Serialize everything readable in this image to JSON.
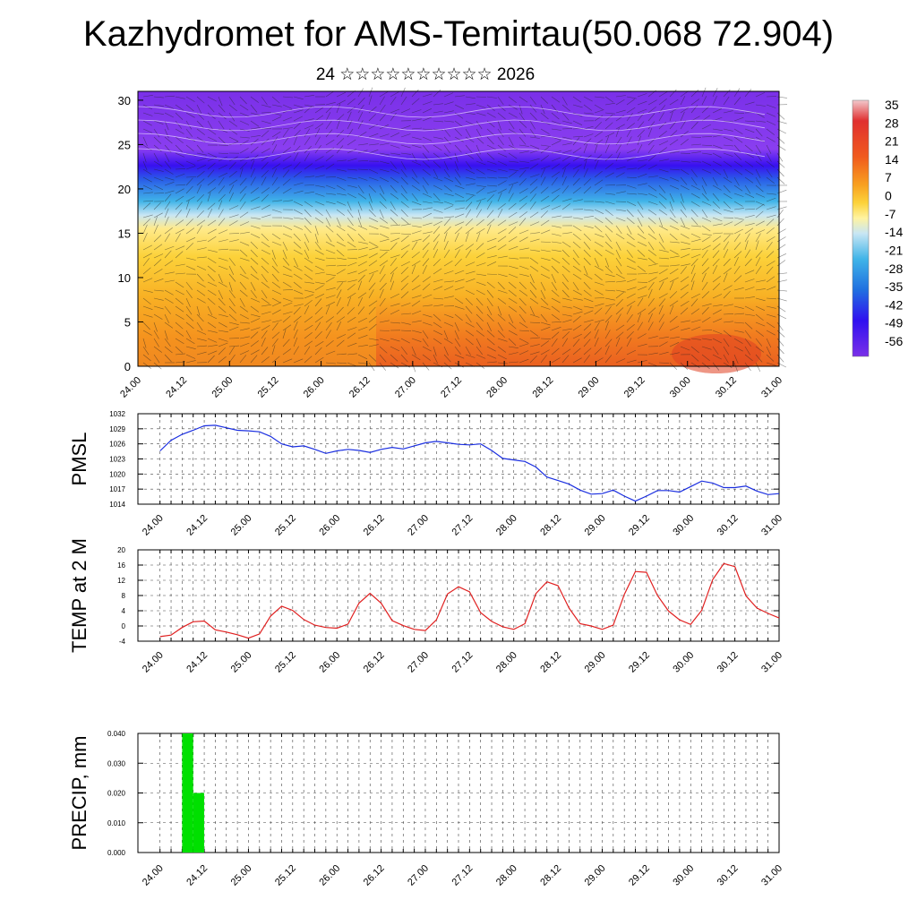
{
  "title": "Kazhydromet for AMS-Temirtau(50.068 72.904)",
  "subtitle": "24 ☆☆☆☆☆☆☆☆☆☆ 2026",
  "time_labels": [
    "24.00",
    "24.12",
    "25.00",
    "25.12",
    "26.00",
    "26.12",
    "27.00",
    "27.12",
    "28.00",
    "28.12",
    "29.00",
    "29.12",
    "30.00",
    "30.12",
    "31.00"
  ],
  "chart_data": [
    {
      "type": "heatmap",
      "name": "cross-section",
      "x": [
        "24.00",
        "24.12",
        "25.00",
        "25.12",
        "26.00",
        "26.12",
        "27.00",
        "27.12",
        "28.00",
        "28.12",
        "29.00",
        "29.12",
        "30.00",
        "30.12",
        "31.00"
      ],
      "yticks": [
        0,
        5,
        10,
        15,
        20,
        25,
        30
      ],
      "ylim": [
        0,
        31
      ],
      "colorbar_labels": [
        "35",
        "28",
        "21",
        "14",
        "7",
        "0",
        "-7",
        "-14",
        "-21",
        "-28",
        "-35",
        "-42",
        "-49",
        "-56"
      ],
      "colorbar_colors": [
        "#f2c8cc",
        "#e03030",
        "#f05a1e",
        "#f8a020",
        "#fcd23a",
        "#fff3a0",
        "#c8e6f4",
        "#40b4e8",
        "#2070e0",
        "#3010f0",
        "#7a30e8"
      ],
      "grid_values": [
        [
          -56,
          -56,
          -54,
          -56,
          -55,
          -54,
          -55,
          -56,
          -54,
          -55,
          -56,
          -55,
          -54,
          -56,
          -55
        ],
        [
          -50,
          -49,
          -48,
          -52,
          -50,
          -49,
          -51,
          -50,
          -48,
          -50,
          -51,
          -49,
          -50,
          -52,
          -50
        ],
        [
          -25,
          -22,
          -24,
          -28,
          -30,
          -26,
          -24,
          -20,
          -22,
          -26,
          -30,
          -28,
          -24,
          -26,
          -30
        ],
        [
          -3,
          -5,
          -6,
          -8,
          -4,
          -2,
          -1,
          -2,
          -4,
          -6,
          -3,
          -1,
          0,
          -2,
          -4
        ],
        [
          3,
          2,
          0,
          4,
          5,
          6,
          7,
          6,
          5,
          7,
          8,
          9,
          10,
          9,
          8
        ],
        [
          5,
          4,
          3,
          6,
          8,
          10,
          11,
          10,
          9,
          11,
          12,
          14,
          15,
          16,
          12
        ]
      ],
      "grid_levels": [
        30,
        22,
        18,
        14,
        8,
        2
      ]
    },
    {
      "type": "line",
      "name": "pmsl",
      "ylabel": "PMSL",
      "ylim": [
        1014,
        1032
      ],
      "yticks": [
        "1014",
        "1017",
        "1020",
        "1023",
        "1026",
        "1029",
        "1032"
      ],
      "xlim": [
        23.75,
        31.0
      ],
      "color": "#1a2ee0",
      "x": [
        24.0,
        24.125,
        24.25,
        24.375,
        24.5,
        24.625,
        24.75,
        24.875,
        25.0,
        25.125,
        25.25,
        25.375,
        25.5,
        25.625,
        25.75,
        25.875,
        26.0,
        26.125,
        26.25,
        26.375,
        26.5,
        26.625,
        26.75,
        26.875,
        27.0,
        27.125,
        27.25,
        27.375,
        27.5,
        27.625,
        27.75,
        27.875,
        28.0,
        28.125,
        28.25,
        28.375,
        28.5,
        28.625,
        28.75,
        28.875,
        29.0,
        29.125,
        29.25,
        29.375,
        29.5,
        29.625,
        29.75,
        29.875,
        30.0,
        30.125,
        30.25,
        30.375,
        30.5,
        30.625,
        30.75,
        30.875,
        31.0
      ],
      "values": [
        1024.6,
        1026.7,
        1027.9,
        1028.7,
        1029.6,
        1029.7,
        1029.2,
        1028.7,
        1028.6,
        1028.4,
        1027.5,
        1026.0,
        1025.4,
        1025.6,
        1024.9,
        1024.1,
        1024.6,
        1024.9,
        1024.7,
        1024.3,
        1024.9,
        1025.3,
        1025.0,
        1025.6,
        1026.2,
        1026.5,
        1026.2,
        1025.9,
        1025.8,
        1026.0,
        1024.7,
        1023.1,
        1022.8,
        1022.5,
        1021.4,
        1019.4,
        1018.7,
        1018.0,
        1016.8,
        1016.0,
        1016.1,
        1016.8,
        1015.6,
        1014.6,
        1015.6,
        1016.7,
        1016.7,
        1016.4,
        1017.5,
        1018.6,
        1018.2,
        1017.3,
        1017.3,
        1017.6,
        1016.6,
        1015.9,
        1016.1
      ]
    },
    {
      "type": "line",
      "name": "temp2m",
      "ylabel": "TEMP at 2 M",
      "ylim": [
        -4,
        20
      ],
      "yticks": [
        "-4",
        "0",
        "4",
        "8",
        "12",
        "16",
        "20"
      ],
      "xlim": [
        23.75,
        31.0
      ],
      "color": "#e02020",
      "x": [
        24.0,
        24.125,
        24.25,
        24.375,
        24.5,
        24.625,
        24.75,
        24.875,
        25.0,
        25.125,
        25.25,
        25.375,
        25.5,
        25.625,
        25.75,
        25.875,
        26.0,
        26.125,
        26.25,
        26.375,
        26.5,
        26.625,
        26.75,
        26.875,
        27.0,
        27.125,
        27.25,
        27.375,
        27.5,
        27.625,
        27.75,
        27.875,
        28.0,
        28.125,
        28.25,
        28.375,
        28.5,
        28.625,
        28.75,
        28.875,
        29.0,
        29.125,
        29.25,
        29.375,
        29.5,
        29.625,
        29.75,
        29.875,
        30.0,
        30.125,
        30.25,
        30.375,
        30.5,
        30.625,
        30.75,
        30.875,
        31.0
      ],
      "values": [
        -2.8,
        -2.4,
        -0.4,
        1.1,
        1.3,
        -1.0,
        -1.6,
        -2.3,
        -3.2,
        -2.1,
        2.6,
        5.2,
        4.1,
        1.7,
        0.2,
        -0.4,
        -0.6,
        0.5,
        6.0,
        8.6,
        6.0,
        1.4,
        0.1,
        -0.9,
        -1.2,
        1.6,
        8.4,
        10.3,
        9.0,
        3.5,
        1.2,
        -0.2,
        -0.9,
        0.6,
        8.5,
        11.6,
        10.6,
        4.7,
        0.6,
        0.0,
        -0.9,
        0.2,
        8.3,
        14.3,
        14.1,
        8.0,
        3.9,
        1.6,
        0.4,
        4.1,
        12.2,
        16.4,
        15.6,
        7.9,
        4.7,
        3.3,
        2.1
      ]
    },
    {
      "type": "bar",
      "name": "precip",
      "ylabel": "PRECIP, mm",
      "ylim": [
        0.0,
        0.04
      ],
      "yticks": [
        "0.000",
        "0.010",
        "0.020",
        "0.030",
        "0.040"
      ],
      "xlim": [
        23.75,
        31.0
      ],
      "color": "#00e000",
      "bars": [
        {
          "start": 24.25,
          "end": 24.375,
          "value": 0.04
        },
        {
          "start": 24.375,
          "end": 24.5,
          "value": 0.02
        }
      ]
    }
  ]
}
